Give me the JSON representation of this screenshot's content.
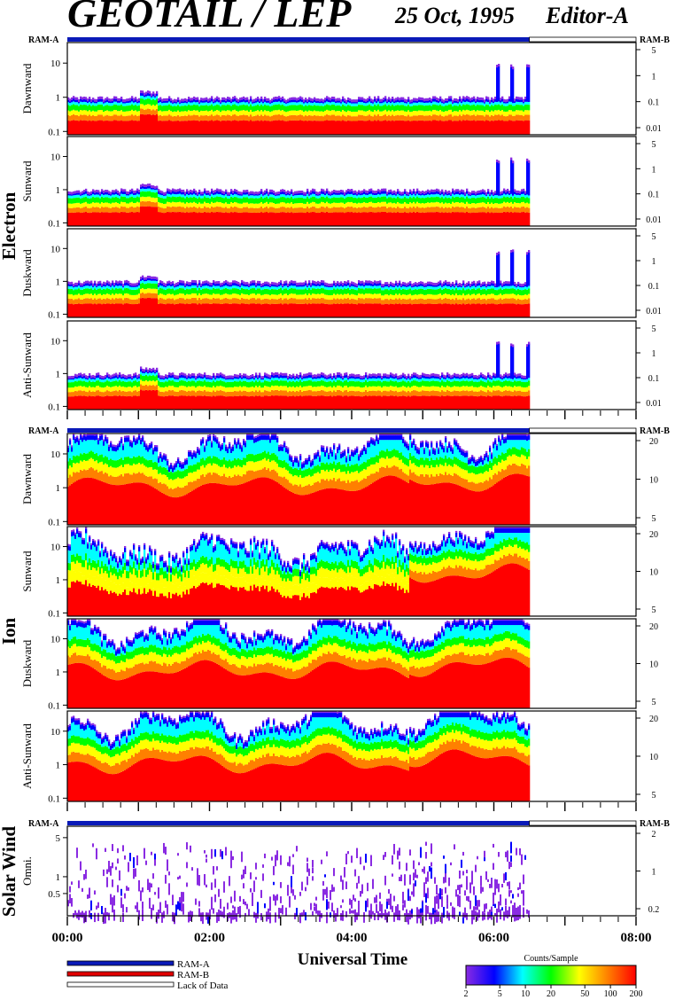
{
  "header": {
    "title": "GEOTAIL / LEP",
    "date": "25 Oct, 1995",
    "editor": "Editor-A"
  },
  "groups": [
    {
      "name": "Electron",
      "left_scale": "log_0.1_30",
      "right_ticks": [
        "5",
        "1",
        "0.1",
        "0.01"
      ],
      "panels": [
        {
          "label": "Dawnward",
          "ylim": [
            0.08,
            40
          ],
          "y_ticks": [
            "10",
            "1",
            "0.1"
          ]
        },
        {
          "label": "Sunward",
          "ylim": [
            0.08,
            40
          ],
          "y_ticks": [
            "10",
            "1",
            "0.1"
          ]
        },
        {
          "label": "Duskward",
          "ylim": [
            0.08,
            40
          ],
          "y_ticks": [
            "10",
            "1",
            "0.1"
          ]
        },
        {
          "label": "Anti-Sunward",
          "ylim": [
            0.08,
            40
          ],
          "y_ticks": [
            "10",
            "1",
            "0.1"
          ]
        }
      ]
    },
    {
      "name": "Ion",
      "right_ticks": [
        "20",
        "10",
        "5"
      ],
      "panels": [
        {
          "label": "Dawnward",
          "ylim": [
            0.08,
            40
          ],
          "y_ticks": [
            "10",
            "1",
            "0.1"
          ]
        },
        {
          "label": "Sunward",
          "ylim": [
            0.08,
            40
          ],
          "y_ticks": [
            "10",
            "1",
            "0.1"
          ]
        },
        {
          "label": "Duskward",
          "ylim": [
            0.08,
            40
          ],
          "y_ticks": [
            "10",
            "1",
            "0.1"
          ]
        },
        {
          "label": "Anti-Sunward",
          "ylim": [
            0.08,
            40
          ],
          "y_ticks": [
            "10",
            "1",
            "0.1"
          ]
        }
      ]
    },
    {
      "name": "Solar Wind",
      "right_ticks": [
        "2",
        "1",
        "0.2"
      ],
      "panels": [
        {
          "label": "Omni.",
          "ylim": [
            0.2,
            8
          ],
          "y_ticks": [
            "5",
            "1",
            "0.5"
          ]
        }
      ]
    }
  ],
  "ram_labels": {
    "left": "RAM-A",
    "right": "RAM-B"
  },
  "chart_data": {
    "type": "heatmap",
    "xlabel": "Universal Time",
    "x_ticks": [
      "00:00",
      "02:00",
      "04:00",
      "06:00",
      "08:00"
    ],
    "xlim_hours": [
      0,
      8
    ],
    "data_end_hours": 6.5,
    "ram_mode": "RAM-A from 00:00 to 06:30; lack of data after 06:30",
    "colorbar": {
      "title": "Counts/Sample",
      "ticks": [
        "2",
        "5",
        "10",
        "20",
        "50",
        "100",
        "200"
      ],
      "range": [
        2,
        200
      ],
      "scale": "log",
      "colors": [
        "#8a2be2",
        "#0000ff",
        "#00ffff",
        "#00ff00",
        "#ffff00",
        "#ff8000",
        "#ff0000"
      ]
    }
  },
  "legend": [
    {
      "label": "RAM-A",
      "color": "#0a1ab8"
    },
    {
      "label": "RAM-B",
      "color": "#e00000"
    },
    {
      "label": "Lack of Data",
      "color": "#ffffff"
    }
  ]
}
